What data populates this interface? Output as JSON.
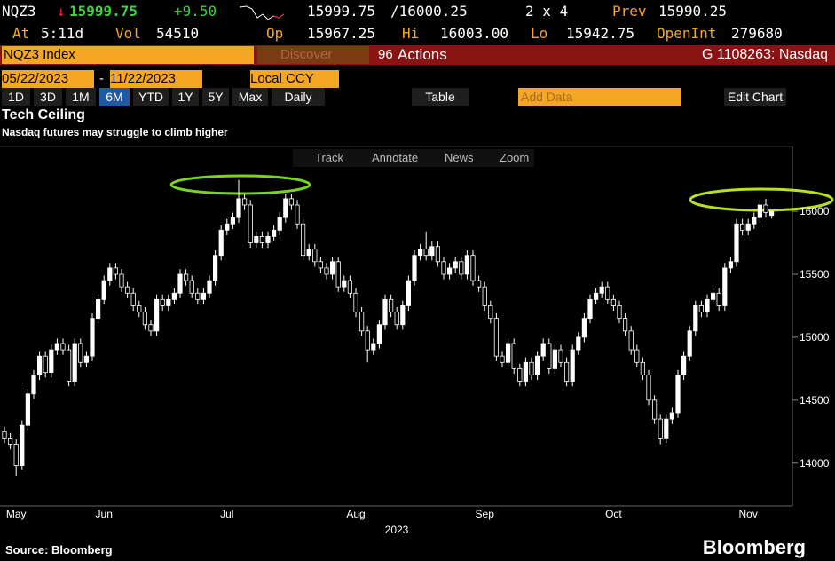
{
  "quote": {
    "ticker": "NQZ3",
    "last": "15999.75",
    "change": "+9.50",
    "bid": "15999.75",
    "ask": "/16000.25",
    "size": "2 x 4",
    "prev_label": "Prev",
    "prev": "15990.25",
    "time_label": "At",
    "time": "5:11d",
    "vol_label": "Vol",
    "vol": "54510",
    "open_label": "Op",
    "open": "15967.25",
    "high_label": "Hi",
    "high": "16003.00",
    "low_label": "Lo",
    "low": "15942.75",
    "oi_label": "OpenInt",
    "oi": "279680"
  },
  "toolbar": {
    "security": "NQZ3 Index",
    "discover": "Discover",
    "actions": "Actions",
    "chart_id": "G 1108263: Nasdaq",
    "start": "05/22/2023",
    "end": "11/22/2023",
    "currency": "Local CCY",
    "periods": [
      "1D",
      "3D",
      "1M",
      "6M",
      "YTD",
      "1Y",
      "5Y",
      "Max"
    ],
    "frequency": "Daily",
    "table": "Table",
    "add_data": "Add Data",
    "edit_chart": "Edit Chart"
  },
  "chart_tools": [
    "Track",
    "Annotate",
    "News",
    "Zoom"
  ],
  "chart_data": {
    "type": "candlestick",
    "title": "Tech Ceiling",
    "subtitle": "Nasdaq futures may struggle to climb higher",
    "source": "Source: Bloomberg",
    "brand": "Bloomberg",
    "year_label": "2023",
    "up_color": "#ffffff",
    "down_color": "#000000",
    "ylim": [
      13660,
      16515
    ],
    "yticks": [
      14000,
      14500,
      15000,
      15500,
      16000
    ],
    "categories": [
      null,
      null,
      "May",
      null,
      null,
      null,
      null,
      null,
      null,
      null,
      null,
      null,
      null,
      null,
      null,
      null,
      null,
      "Jun",
      null,
      null,
      null,
      null,
      null,
      null,
      null,
      null,
      null,
      null,
      null,
      null,
      null,
      null,
      null,
      null,
      null,
      null,
      null,
      null,
      "Jul",
      null,
      null,
      null,
      null,
      null,
      null,
      null,
      null,
      null,
      null,
      null,
      null,
      null,
      null,
      null,
      null,
      null,
      null,
      null,
      null,
      null,
      "Aug",
      null,
      null,
      null,
      null,
      null,
      null,
      null,
      null,
      null,
      null,
      null,
      null,
      null,
      null,
      null,
      null,
      null,
      null,
      null,
      null,
      null,
      "Sep",
      null,
      null,
      null,
      null,
      null,
      null,
      null,
      null,
      null,
      null,
      null,
      null,
      null,
      null,
      null,
      null,
      null,
      null,
      null,
      null,
      null,
      "Oct",
      null,
      null,
      null,
      null,
      null,
      null,
      null,
      null,
      null,
      null,
      null,
      null,
      null,
      null,
      null,
      null,
      null,
      null,
      null,
      null,
      null,
      null,
      "Nov",
      null,
      null,
      null,
      null
    ],
    "open": [
      14250,
      14200,
      14150,
      13980,
      14300,
      14550,
      14700,
      14850,
      14720,
      14900,
      14950,
      14900,
      14650,
      14950,
      14800,
      14850,
      15150,
      15300,
      15450,
      15550,
      15500,
      15400,
      15350,
      15250,
      15200,
      15100,
      15050,
      15300,
      15250,
      15300,
      15350,
      15500,
      15450,
      15350,
      15300,
      15350,
      15450,
      15650,
      15850,
      15900,
      15950,
      16100,
      16050,
      15750,
      15800,
      15750,
      15800,
      15850,
      15950,
      16100,
      16050,
      15900,
      15650,
      15700,
      15600,
      15550,
      15500,
      15600,
      15400,
      15450,
      15350,
      15200,
      15050,
      14900,
      14950,
      15100,
      15300,
      15200,
      15100,
      15250,
      15450,
      15650,
      15700,
      15650,
      15720,
      15600,
      15500,
      15550,
      15600,
      15500,
      15650,
      15450,
      15400,
      15250,
      15150,
      14850,
      14800,
      14950,
      14750,
      14650,
      14800,
      14700,
      14850,
      14950,
      14750,
      14900,
      14800,
      14650,
      14900,
      15000,
      15150,
      15300,
      15350,
      15400,
      15300,
      15250,
      15150,
      15050,
      14900,
      14800,
      14700,
      14500,
      14350,
      14200,
      14350,
      14400,
      14700,
      14850,
      15050,
      15250,
      15200,
      15300,
      15350,
      15250,
      15550,
      15600,
      15900,
      15850,
      15900,
      15950,
      16050,
      15967.25
    ],
    "high": [
      14290,
      14240,
      14190,
      14340,
      14590,
      14740,
      14890,
      14890,
      14940,
      14990,
      14990,
      14940,
      14990,
      14990,
      14890,
      15190,
      15340,
      15490,
      15590,
      15590,
      15540,
      15440,
      15390,
      15290,
      15240,
      15140,
      15340,
      15340,
      15340,
      15390,
      15540,
      15540,
      15490,
      15390,
      15390,
      15490,
      15690,
      15890,
      15940,
      15990,
      16250,
      16140,
      16090,
      15840,
      15840,
      15840,
      15890,
      15990,
      16140,
      16140,
      16090,
      15940,
      15740,
      15740,
      15640,
      15590,
      15640,
      15640,
      15490,
      15490,
      15390,
      15240,
      15090,
      14990,
      15140,
      15340,
      15340,
      15240,
      15290,
      15490,
      15690,
      15740,
      15840,
      15760,
      15760,
      15640,
      15590,
      15640,
      15640,
      15690,
      15690,
      15490,
      15440,
      15290,
      15190,
      14890,
      14990,
      14990,
      14790,
      14840,
      14840,
      14890,
      14990,
      14990,
      14940,
      14940,
      14840,
      14940,
      15040,
      15190,
      15340,
      15390,
      15440,
      15440,
      15340,
      15290,
      15190,
      15090,
      14940,
      14840,
      14740,
      14540,
      14390,
      14390,
      14440,
      14740,
      14890,
      15090,
      15290,
      15290,
      15340,
      15390,
      15390,
      15590,
      15640,
      15940,
      15940,
      15940,
      15990,
      16090,
      16100,
      16003
    ],
    "low": [
      14160,
      14110,
      13900,
      13950,
      14260,
      14510,
      14660,
      14680,
      14680,
      14860,
      14860,
      14610,
      14610,
      14760,
      14760,
      14810,
      15110,
      15260,
      15410,
      15460,
      15360,
      15310,
      15210,
      15160,
      15060,
      15010,
      15010,
      15210,
      15210,
      15260,
      15310,
      15410,
      15310,
      15260,
      15260,
      15310,
      15410,
      15610,
      15810,
      15860,
      15910,
      16010,
      15710,
      15710,
      15710,
      15710,
      15760,
      15810,
      15910,
      16010,
      15860,
      15610,
      15610,
      15560,
      15510,
      15460,
      15460,
      15360,
      15360,
      15310,
      15160,
      15010,
      14800,
      14860,
      14910,
      15060,
      15160,
      15060,
      15060,
      15210,
      15410,
      15610,
      15610,
      15610,
      15560,
      15460,
      15460,
      15510,
      15460,
      15460,
      15410,
      15360,
      15210,
      15110,
      14810,
      14760,
      14760,
      14710,
      14610,
      14610,
      14660,
      14660,
      14810,
      14710,
      14710,
      14760,
      14610,
      14610,
      14860,
      14960,
      15110,
      15260,
      15310,
      15260,
      15210,
      15110,
      15010,
      14860,
      14760,
      14660,
      14460,
      14310,
      14150,
      14160,
      14310,
      14360,
      14660,
      14810,
      15010,
      15160,
      15160,
      15260,
      15210,
      15210,
      15510,
      15560,
      15810,
      15810,
      15860,
      15910,
      15950,
      15942.75
    ],
    "close": [
      14200,
      14150,
      13980,
      14300,
      14550,
      14700,
      14850,
      14720,
      14900,
      14950,
      14900,
      14650,
      14950,
      14800,
      14850,
      15150,
      15300,
      15450,
      15550,
      15500,
      15400,
      15350,
      15250,
      15200,
      15100,
      15050,
      15300,
      15250,
      15300,
      15350,
      15500,
      15450,
      15350,
      15300,
      15350,
      15450,
      15650,
      15850,
      15900,
      15950,
      16100,
      16050,
      15750,
      15800,
      15750,
      15800,
      15850,
      15950,
      16100,
      16050,
      15900,
      15650,
      15700,
      15600,
      15550,
      15500,
      15600,
      15400,
      15450,
      15350,
      15200,
      15050,
      14900,
      14950,
      15100,
      15300,
      15200,
      15100,
      15250,
      15450,
      15650,
      15700,
      15650,
      15720,
      15600,
      15500,
      15550,
      15600,
      15500,
      15650,
      15450,
      15400,
      15250,
      15150,
      14850,
      14800,
      14950,
      14750,
      14650,
      14800,
      14700,
      14850,
      14950,
      14750,
      14900,
      14800,
      14650,
      14900,
      15000,
      15150,
      15300,
      15350,
      15400,
      15300,
      15250,
      15150,
      15050,
      14900,
      14800,
      14700,
      14500,
      14350,
      14200,
      14350,
      14400,
      14700,
      14850,
      15050,
      15250,
      15200,
      15300,
      15350,
      15250,
      15550,
      15600,
      15900,
      15850,
      15900,
      15950,
      16050,
      15990.25,
      15999.75
    ]
  }
}
